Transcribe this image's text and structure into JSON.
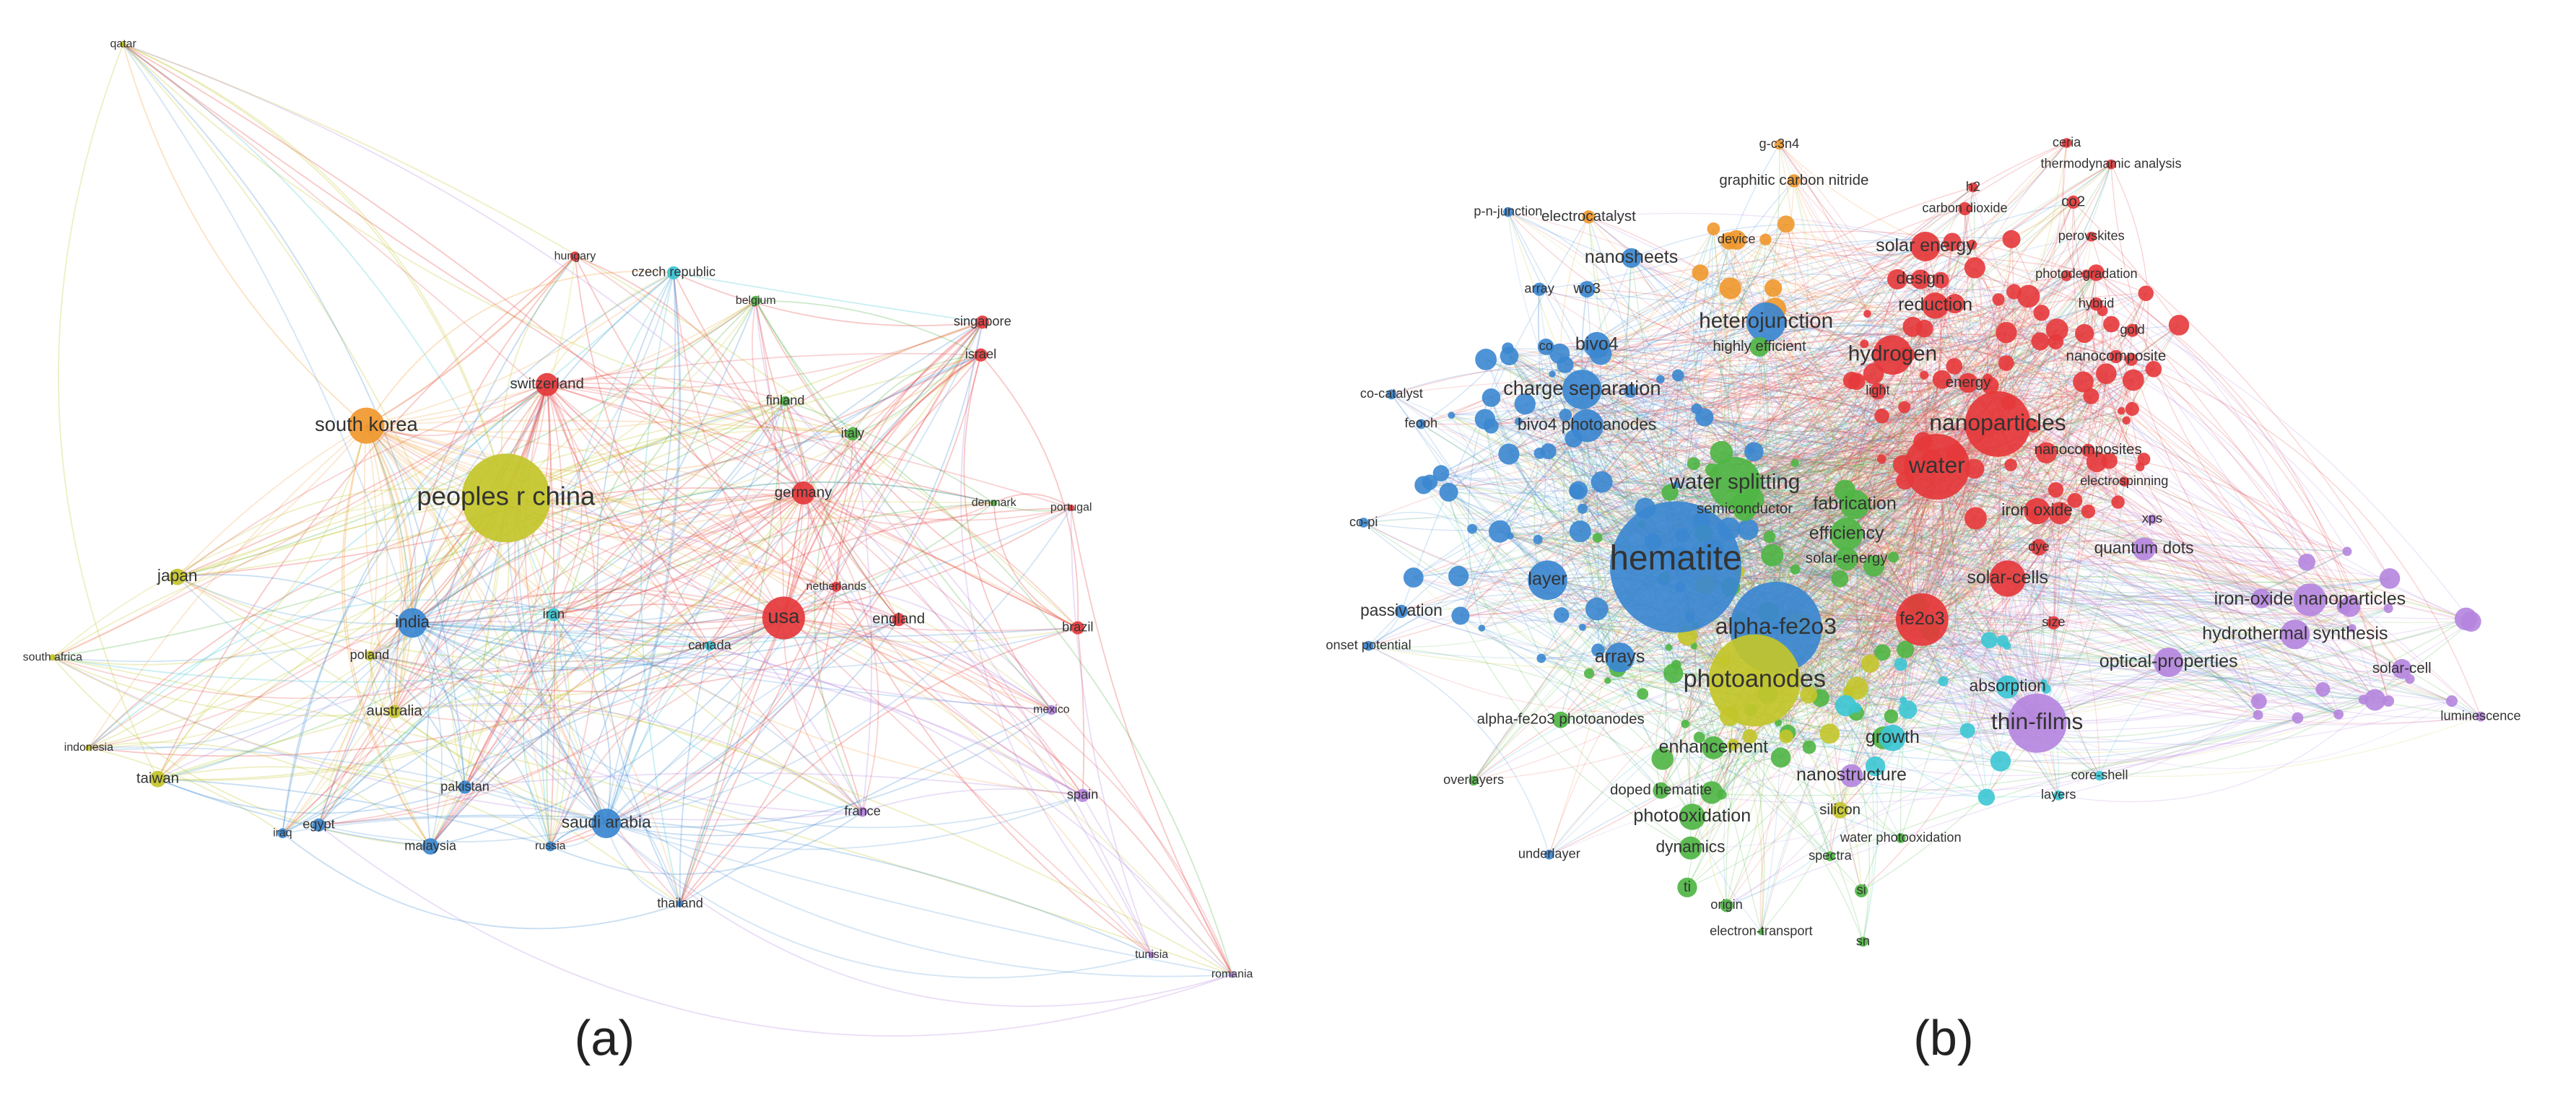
{
  "panels": [
    {
      "caption": "(a)",
      "nodes": [
        "qatar",
        "hungary",
        "czech republic",
        "belgium",
        "singapore",
        "israel",
        "switzerland",
        "finland",
        "italy",
        "south korea",
        "peoples r china",
        "germany",
        "denmark",
        "portugal",
        "japan",
        "india",
        "iran",
        "netherlands",
        "usa",
        "england",
        "brazil",
        "canada",
        "south africa",
        "poland",
        "australia",
        "mexico",
        "indonesia",
        "taiwan",
        "pakistan",
        "spain",
        "france",
        "saudi arabia",
        "iraq",
        "egypt",
        "malaysia",
        "russia",
        "thailand",
        "tunisia",
        "romania"
      ]
    },
    {
      "caption": "(b)",
      "nodes": [
        "g-c3n4",
        "ceria",
        "graphitic carbon nitride",
        "thermodynamic analysis",
        "h2",
        "p-n-junction",
        "electrocatalyst",
        "carbon dioxide",
        "co2",
        "perovskites",
        "device",
        "nanosheets",
        "solar energy",
        "photodegradation",
        "array",
        "wo3",
        "design",
        "reduction",
        "hybrid",
        "heterojunction",
        "gold",
        "co",
        "bivo4",
        "highly efficient",
        "hydrogen",
        "nanocomposite",
        "light",
        "energy",
        "co-catalyst",
        "charge separation",
        "feooh",
        "bivo4 photoanodes",
        "nanoparticles",
        "nanocomposites",
        "water",
        "water splitting",
        "electrospinning",
        "fabrication",
        "semiconductor",
        "iron oxide",
        "co-pi",
        "efficiency",
        "xps",
        "dye",
        "quantum dots",
        "hematite",
        "solar-energy",
        "layer",
        "solar-cells",
        "iron-oxide nanoparticles",
        "passivation",
        "fe2o3",
        "alpha-fe2o3",
        "size",
        "hydrothermal synthesis",
        "onset potential",
        "arrays",
        "optical-properties",
        "solar-cell",
        "photoanodes",
        "absorption",
        "alpha-fe2o3 photoanodes",
        "luminescence",
        "thin-films",
        "growth",
        "enhancement",
        "overlayers",
        "nanostructure",
        "core-shell",
        "layers",
        "doped hematite",
        "photooxidation",
        "silicon",
        "water photooxidation",
        "underlayer",
        "dynamics",
        "spectra",
        "ti",
        "si",
        "origin",
        "electron-transport",
        "sn"
      ]
    }
  ]
}
